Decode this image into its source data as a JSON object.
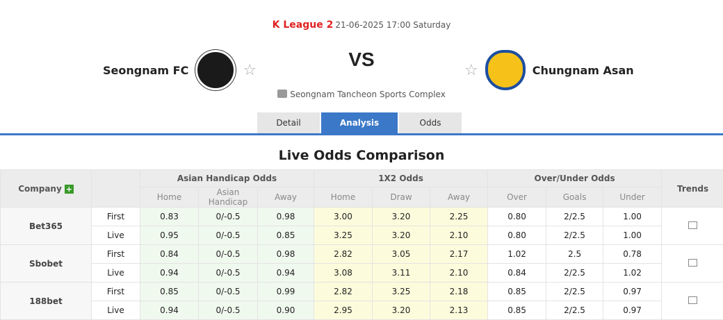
{
  "match": {
    "league": "K League 2",
    "datetime": "21-06-2025 17:00 Saturday",
    "home": "Seongnam FC",
    "away": "Chungnam Asan",
    "vs": "VS",
    "venue": "Seongnam Tancheon Sports Complex"
  },
  "tabs": [
    "Detail",
    "Analysis",
    "Odds"
  ],
  "section_title": "Live Odds Comparison",
  "table": {
    "company": "Company",
    "ah": "Asian Handicap Odds",
    "x12": "1X2 Odds",
    "ou": "Over/Under Odds",
    "trends": "Trends",
    "sub": [
      "Home",
      "Asian Handicap",
      "Away",
      "Home",
      "Draw",
      "Away",
      "Over",
      "Goals",
      "Under"
    ],
    "rows": [
      {
        "company": "Bet365",
        "lines": [
          [
            "First",
            "0.83",
            "0/-0.5",
            "0.98",
            "3.00",
            "3.20",
            "2.25",
            "0.80",
            "2/2.5",
            "1.00"
          ],
          [
            "Live",
            "0.95",
            "0/-0.5",
            "0.85",
            "3.25",
            "3.20",
            "2.10",
            "0.80",
            "2/2.5",
            "1.00"
          ]
        ]
      },
      {
        "company": "Sbobet",
        "lines": [
          [
            "First",
            "0.84",
            "0/-0.5",
            "0.98",
            "2.82",
            "3.05",
            "2.17",
            "1.02",
            "2.5",
            "0.78"
          ],
          [
            "Live",
            "0.94",
            "0/-0.5",
            "0.94",
            "3.08",
            "3.11",
            "2.10",
            "0.84",
            "2/2.5",
            "1.02"
          ]
        ]
      },
      {
        "company": "188bet",
        "lines": [
          [
            "First",
            "0.85",
            "0/-0.5",
            "0.99",
            "2.82",
            "3.25",
            "2.18",
            "0.85",
            "2/2.5",
            "0.97"
          ],
          [
            "Live",
            "0.94",
            "0/-0.5",
            "0.90",
            "2.95",
            "3.20",
            "2.13",
            "0.85",
            "2/2.5",
            "0.97"
          ]
        ]
      }
    ]
  }
}
